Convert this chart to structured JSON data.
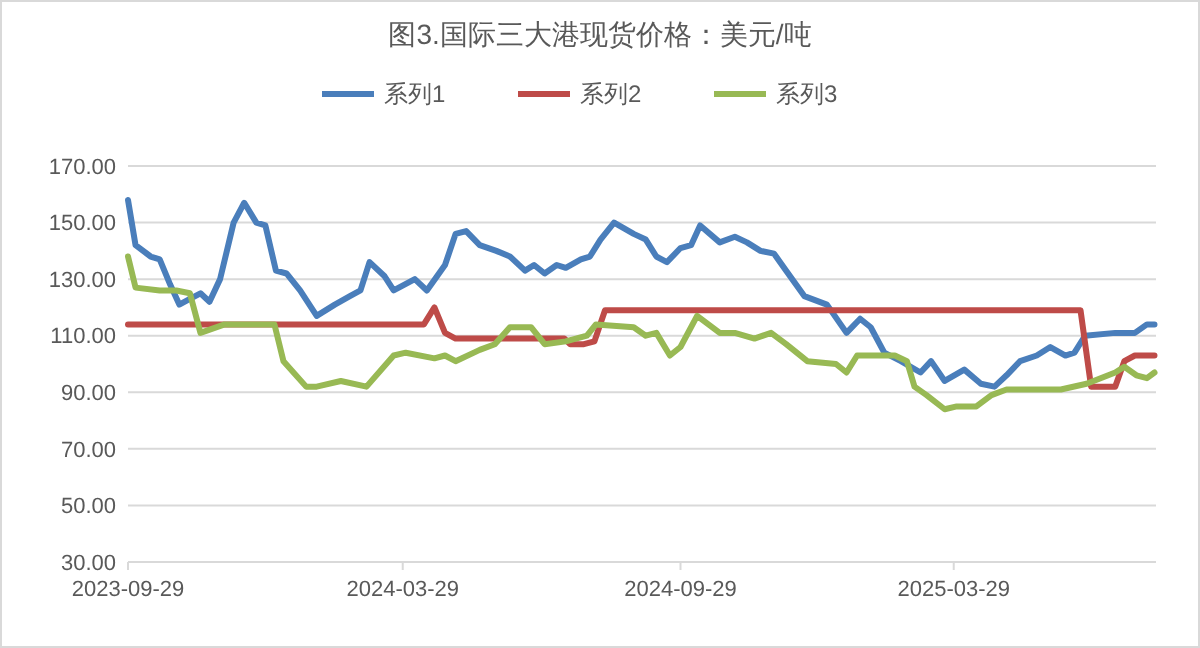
{
  "chart_data": {
    "type": "line",
    "title": "图3.国际三大港现货价格：美元/吨",
    "xlim": [
      "2023-09-29",
      "2025-08-10"
    ],
    "xticks": [
      "2023-09-29",
      "2024-03-29",
      "2024-09-29",
      "2025-03-29"
    ],
    "ylim": [
      30,
      170
    ],
    "yticks": [
      {
        "value": 30,
        "label": "30.00"
      },
      {
        "value": 50,
        "label": "50.00"
      },
      {
        "value": 70,
        "label": "70.00"
      },
      {
        "value": 90,
        "label": "90.00"
      },
      {
        "value": 110,
        "label": "110.00"
      },
      {
        "value": 130,
        "label": "130.00"
      },
      {
        "value": 150,
        "label": "150.00"
      },
      {
        "value": 170,
        "label": "170.00"
      }
    ],
    "grid": "y",
    "legend": "top",
    "line_style": "solid",
    "marker": "none",
    "series": [
      {
        "name": "系列1",
        "color": "#4a7ebb",
        "x": [
          "2023-09-29",
          "2023-10-04",
          "2023-10-14",
          "2023-10-20",
          "2023-10-27",
          "2023-11-02",
          "2023-11-09",
          "2023-11-16",
          "2023-11-22",
          "2023-11-29",
          "2023-12-08",
          "2023-12-15",
          "2023-12-23",
          "2023-12-29",
          "2024-01-05",
          "2024-01-12",
          "2024-01-21",
          "2024-02-01",
          "2024-02-13",
          "2024-02-23",
          "2024-03-01",
          "2024-03-07",
          "2024-03-17",
          "2024-03-23",
          "2024-04-06",
          "2024-04-14",
          "2024-04-26",
          "2024-05-03",
          "2024-05-10",
          "2024-05-19",
          "2024-05-30",
          "2024-06-08",
          "2024-06-18",
          "2024-06-24",
          "2024-07-01",
          "2024-07-09",
          "2024-07-15",
          "2024-07-25",
          "2024-07-31",
          "2024-08-07",
          "2024-08-16",
          "2024-08-29",
          "2024-09-06",
          "2024-09-13",
          "2024-09-20",
          "2024-09-29",
          "2024-10-06",
          "2024-10-12",
          "2024-10-25",
          "2024-11-04",
          "2024-11-12",
          "2024-11-21",
          "2024-11-30",
          "2024-12-08",
          "2024-12-20",
          "2025-01-04",
          "2025-01-17",
          "2025-01-26",
          "2025-02-02",
          "2025-02-11",
          "2025-02-22",
          "2025-03-07",
          "2025-03-14",
          "2025-03-23",
          "2025-04-05",
          "2025-04-16",
          "2025-04-25",
          "2025-05-03",
          "2025-05-12",
          "2025-05-23",
          "2025-06-01",
          "2025-06-11",
          "2025-06-17",
          "2025-06-24",
          "2025-07-14",
          "2025-07-27",
          "2025-08-04",
          "2025-08-09"
        ],
        "values": [
          158,
          142,
          138,
          137,
          128,
          121,
          123,
          125,
          122,
          130,
          150,
          157,
          150,
          149,
          133,
          132,
          126,
          117,
          121,
          124,
          126,
          136,
          131,
          126,
          130,
          126,
          135,
          146,
          147,
          142,
          140,
          138,
          133,
          135,
          132,
          135,
          134,
          137,
          138,
          144,
          150,
          146,
          144,
          138,
          136,
          141,
          142,
          149,
          143,
          145,
          143,
          140,
          139,
          133,
          124,
          121,
          111,
          116,
          113,
          104,
          101,
          97,
          101,
          94,
          98,
          93,
          92,
          96,
          101,
          103,
          106,
          103,
          104,
          110,
          111,
          111,
          114,
          114
        ]
      },
      {
        "name": "系列2",
        "color": "#be4b48",
        "x": [
          "2023-09-29",
          "2024-04-12",
          "2024-04-19",
          "2024-04-26",
          "2024-05-03",
          "2024-07-14",
          "2024-07-18",
          "2024-07-27",
          "2024-08-03",
          "2024-08-10",
          "2025-06-21",
          "2025-06-28",
          "2025-07-14",
          "2025-07-20",
          "2025-07-27",
          "2025-08-09"
        ],
        "values": [
          114,
          114,
          120,
          111,
          109,
          109,
          107,
          107,
          108,
          119,
          119,
          92,
          92,
          101,
          103,
          103
        ]
      },
      {
        "name": "系列3",
        "color": "#98b954",
        "x": [
          "2023-09-29",
          "2023-10-04",
          "2023-10-20",
          "2023-10-31",
          "2023-11-09",
          "2023-11-16",
          "2023-12-02",
          "2024-01-04",
          "2024-01-10",
          "2024-01-25",
          "2024-02-01",
          "2024-02-17",
          "2024-03-05",
          "2024-03-23",
          "2024-03-31",
          "2024-04-19",
          "2024-04-26",
          "2024-05-03",
          "2024-05-19",
          "2024-05-29",
          "2024-06-08",
          "2024-06-22",
          "2024-07-01",
          "2024-07-15",
          "2024-07-29",
          "2024-08-04",
          "2024-08-29",
          "2024-09-06",
          "2024-09-13",
          "2024-09-22",
          "2024-09-29",
          "2024-10-10",
          "2024-10-25",
          "2024-11-04",
          "2024-11-17",
          "2024-11-28",
          "2024-12-08",
          "2024-12-22",
          "2025-01-10",
          "2025-01-17",
          "2025-01-24",
          "2025-02-18",
          "2025-02-26",
          "2025-03-03",
          "2025-03-11",
          "2025-03-23",
          "2025-03-31",
          "2025-04-13",
          "2025-04-23",
          "2025-05-03",
          "2025-05-16",
          "2025-06-08",
          "2025-06-25",
          "2025-07-14",
          "2025-07-20",
          "2025-07-28",
          "2025-08-04",
          "2025-08-09"
        ],
        "values": [
          138,
          127,
          126,
          126,
          125,
          111,
          114,
          114,
          101,
          92,
          92,
          94,
          92,
          103,
          104,
          102,
          103,
          101,
          105,
          107,
          113,
          113,
          107,
          108,
          110,
          114,
          113,
          110,
          111,
          103,
          106,
          117,
          111,
          111,
          109,
          111,
          107,
          101,
          100,
          97,
          103,
          103,
          101,
          92,
          89,
          84,
          85,
          85,
          89,
          91,
          91,
          91,
          93,
          97,
          99,
          96,
          95,
          97
        ]
      }
    ]
  }
}
